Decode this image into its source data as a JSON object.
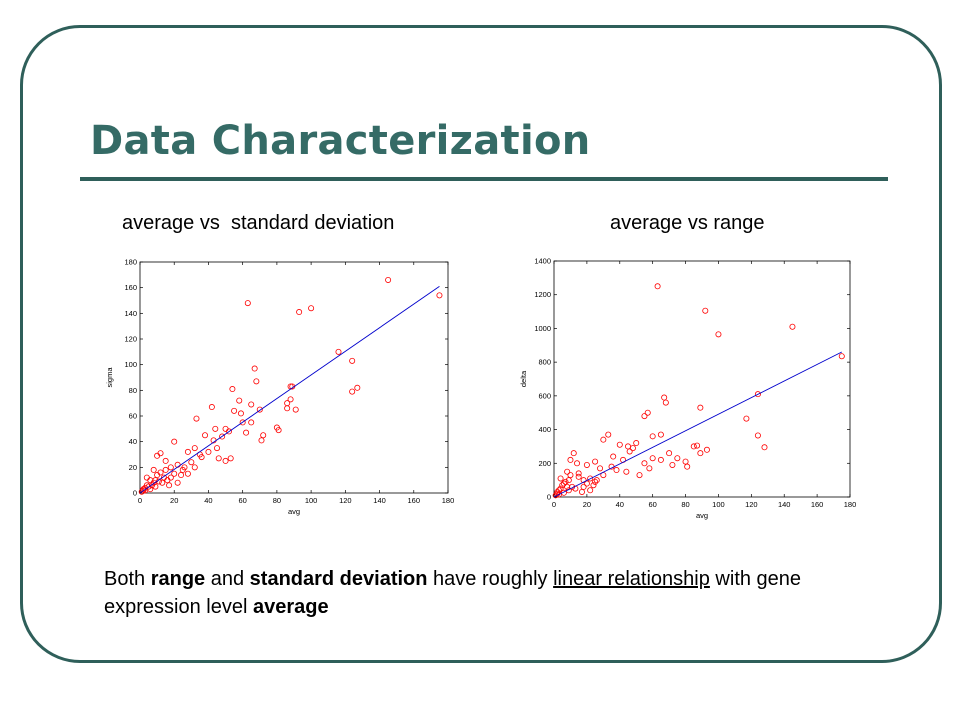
{
  "slide": {
    "title": "Data Characterization",
    "caption": {
      "p1": "Both ",
      "b1": "range",
      "p2": " and ",
      "b2": "standard deviation",
      "p3": " have roughly ",
      "u1": "linear relationship",
      "p4": " with gene expression level ",
      "b3": "average"
    }
  },
  "colors": {
    "frame": "#2f5f5a",
    "title": "#356b66",
    "points": "#ff0000",
    "fit_line": "#0000cc"
  },
  "chart_data": [
    {
      "type": "scatter",
      "title": "average vs  standard deviation",
      "xlabel": "avg",
      "ylabel": "sigma",
      "xlim": [
        0,
        180
      ],
      "ylim": [
        0,
        180
      ],
      "xticks": [
        0,
        20,
        40,
        60,
        80,
        100,
        120,
        140,
        160,
        180
      ],
      "yticks": [
        0,
        20,
        40,
        60,
        80,
        100,
        120,
        140,
        160,
        180
      ],
      "grid": false,
      "marker": "open-circle",
      "fit_line": [
        [
          0,
          0
        ],
        [
          175,
          161
        ]
      ],
      "points": [
        [
          145,
          166
        ],
        [
          175,
          154
        ],
        [
          63,
          148
        ],
        [
          93,
          141
        ],
        [
          100,
          144
        ],
        [
          116,
          110
        ],
        [
          124,
          103
        ],
        [
          127,
          82
        ],
        [
          124,
          79
        ],
        [
          67,
          97
        ],
        [
          68,
          87
        ],
        [
          88,
          83
        ],
        [
          89,
          83
        ],
        [
          54,
          81
        ],
        [
          58,
          72
        ],
        [
          65,
          69
        ],
        [
          88,
          73
        ],
        [
          86,
          70
        ],
        [
          86,
          66
        ],
        [
          91,
          65
        ],
        [
          70,
          65
        ],
        [
          55,
          64
        ],
        [
          59,
          62
        ],
        [
          42,
          67
        ],
        [
          60,
          55
        ],
        [
          33,
          58
        ],
        [
          44,
          50
        ],
        [
          50,
          50
        ],
        [
          65,
          55
        ],
        [
          62,
          47
        ],
        [
          72,
          45
        ],
        [
          71,
          41
        ],
        [
          80,
          51
        ],
        [
          81,
          49
        ],
        [
          38,
          45
        ],
        [
          43,
          41
        ],
        [
          48,
          44
        ],
        [
          52,
          48
        ],
        [
          20,
          40
        ],
        [
          28,
          32
        ],
        [
          32,
          35
        ],
        [
          35,
          30
        ],
        [
          40,
          32
        ],
        [
          45,
          35
        ],
        [
          46,
          27
        ],
        [
          53,
          27
        ],
        [
          50,
          25
        ],
        [
          12,
          31
        ],
        [
          10,
          29
        ],
        [
          15,
          25
        ],
        [
          18,
          20
        ],
        [
          22,
          22
        ],
        [
          25,
          18
        ],
        [
          30,
          24
        ],
        [
          28,
          15
        ],
        [
          32,
          20
        ],
        [
          36,
          28
        ],
        [
          8,
          18
        ],
        [
          10,
          14
        ],
        [
          12,
          16
        ],
        [
          14,
          12
        ],
        [
          16,
          10
        ],
        [
          6,
          10
        ],
        [
          8,
          8
        ],
        [
          4,
          6
        ],
        [
          3,
          4
        ],
        [
          2,
          3
        ],
        [
          5,
          5
        ],
        [
          7,
          6
        ],
        [
          9,
          10
        ],
        [
          11,
          9
        ],
        [
          13,
          8
        ],
        [
          1,
          1
        ],
        [
          2,
          2
        ],
        [
          3,
          2
        ],
        [
          6,
          3
        ],
        [
          18,
          12
        ],
        [
          20,
          15
        ],
        [
          24,
          14
        ],
        [
          26,
          20
        ],
        [
          15,
          18
        ],
        [
          4,
          12
        ],
        [
          9,
          5
        ],
        [
          17,
          6
        ],
        [
          22,
          8
        ]
      ]
    },
    {
      "type": "scatter",
      "title": "average vs range",
      "xlabel": "avg",
      "ylabel": "delta",
      "xlim": [
        0,
        180
      ],
      "ylim": [
        0,
        1400
      ],
      "xticks": [
        0,
        20,
        40,
        60,
        80,
        100,
        120,
        140,
        160,
        180
      ],
      "yticks": [
        0,
        200,
        400,
        600,
        800,
        1000,
        1200,
        1400
      ],
      "grid": false,
      "marker": "open-circle",
      "fit_line": [
        [
          0,
          0
        ],
        [
          175,
          860
        ]
      ],
      "points": [
        [
          63,
          1250
        ],
        [
          92,
          1105
        ],
        [
          145,
          1010
        ],
        [
          100,
          965
        ],
        [
          175,
          835
        ],
        [
          67,
          590
        ],
        [
          68,
          560
        ],
        [
          124,
          610
        ],
        [
          89,
          530
        ],
        [
          55,
          480
        ],
        [
          57,
          500
        ],
        [
          117,
          465
        ],
        [
          124,
          365
        ],
        [
          128,
          295
        ],
        [
          33,
          370
        ],
        [
          30,
          340
        ],
        [
          65,
          370
        ],
        [
          60,
          360
        ],
        [
          50,
          320
        ],
        [
          48,
          290
        ],
        [
          40,
          310
        ],
        [
          45,
          300
        ],
        [
          87,
          305
        ],
        [
          89,
          260
        ],
        [
          93,
          280
        ],
        [
          80,
          210
        ],
        [
          85,
          300
        ],
        [
          70,
          260
        ],
        [
          72,
          190
        ],
        [
          81,
          180
        ],
        [
          60,
          230
        ],
        [
          65,
          220
        ],
        [
          55,
          200
        ],
        [
          46,
          270
        ],
        [
          12,
          260
        ],
        [
          10,
          220
        ],
        [
          14,
          200
        ],
        [
          20,
          190
        ],
        [
          25,
          210
        ],
        [
          28,
          170
        ],
        [
          35,
          180
        ],
        [
          38,
          160
        ],
        [
          42,
          220
        ],
        [
          44,
          150
        ],
        [
          8,
          150
        ],
        [
          10,
          130
        ],
        [
          15,
          120
        ],
        [
          18,
          100
        ],
        [
          22,
          110
        ],
        [
          25,
          90
        ],
        [
          30,
          130
        ],
        [
          6,
          80
        ],
        [
          8,
          60
        ],
        [
          4,
          50
        ],
        [
          3,
          40
        ],
        [
          2,
          30
        ],
        [
          5,
          70
        ],
        [
          7,
          90
        ],
        [
          9,
          100
        ],
        [
          11,
          60
        ],
        [
          13,
          50
        ],
        [
          1,
          10
        ],
        [
          2,
          20
        ],
        [
          3,
          15
        ],
        [
          6,
          25
        ],
        [
          18,
          60
        ],
        [
          20,
          80
        ],
        [
          24,
          70
        ],
        [
          26,
          100
        ],
        [
          15,
          140
        ],
        [
          4,
          110
        ],
        [
          9,
          40
        ],
        [
          17,
          30
        ],
        [
          22,
          40
        ],
        [
          52,
          130
        ],
        [
          58,
          170
        ],
        [
          75,
          230
        ],
        [
          36,
          240
        ]
      ]
    }
  ]
}
